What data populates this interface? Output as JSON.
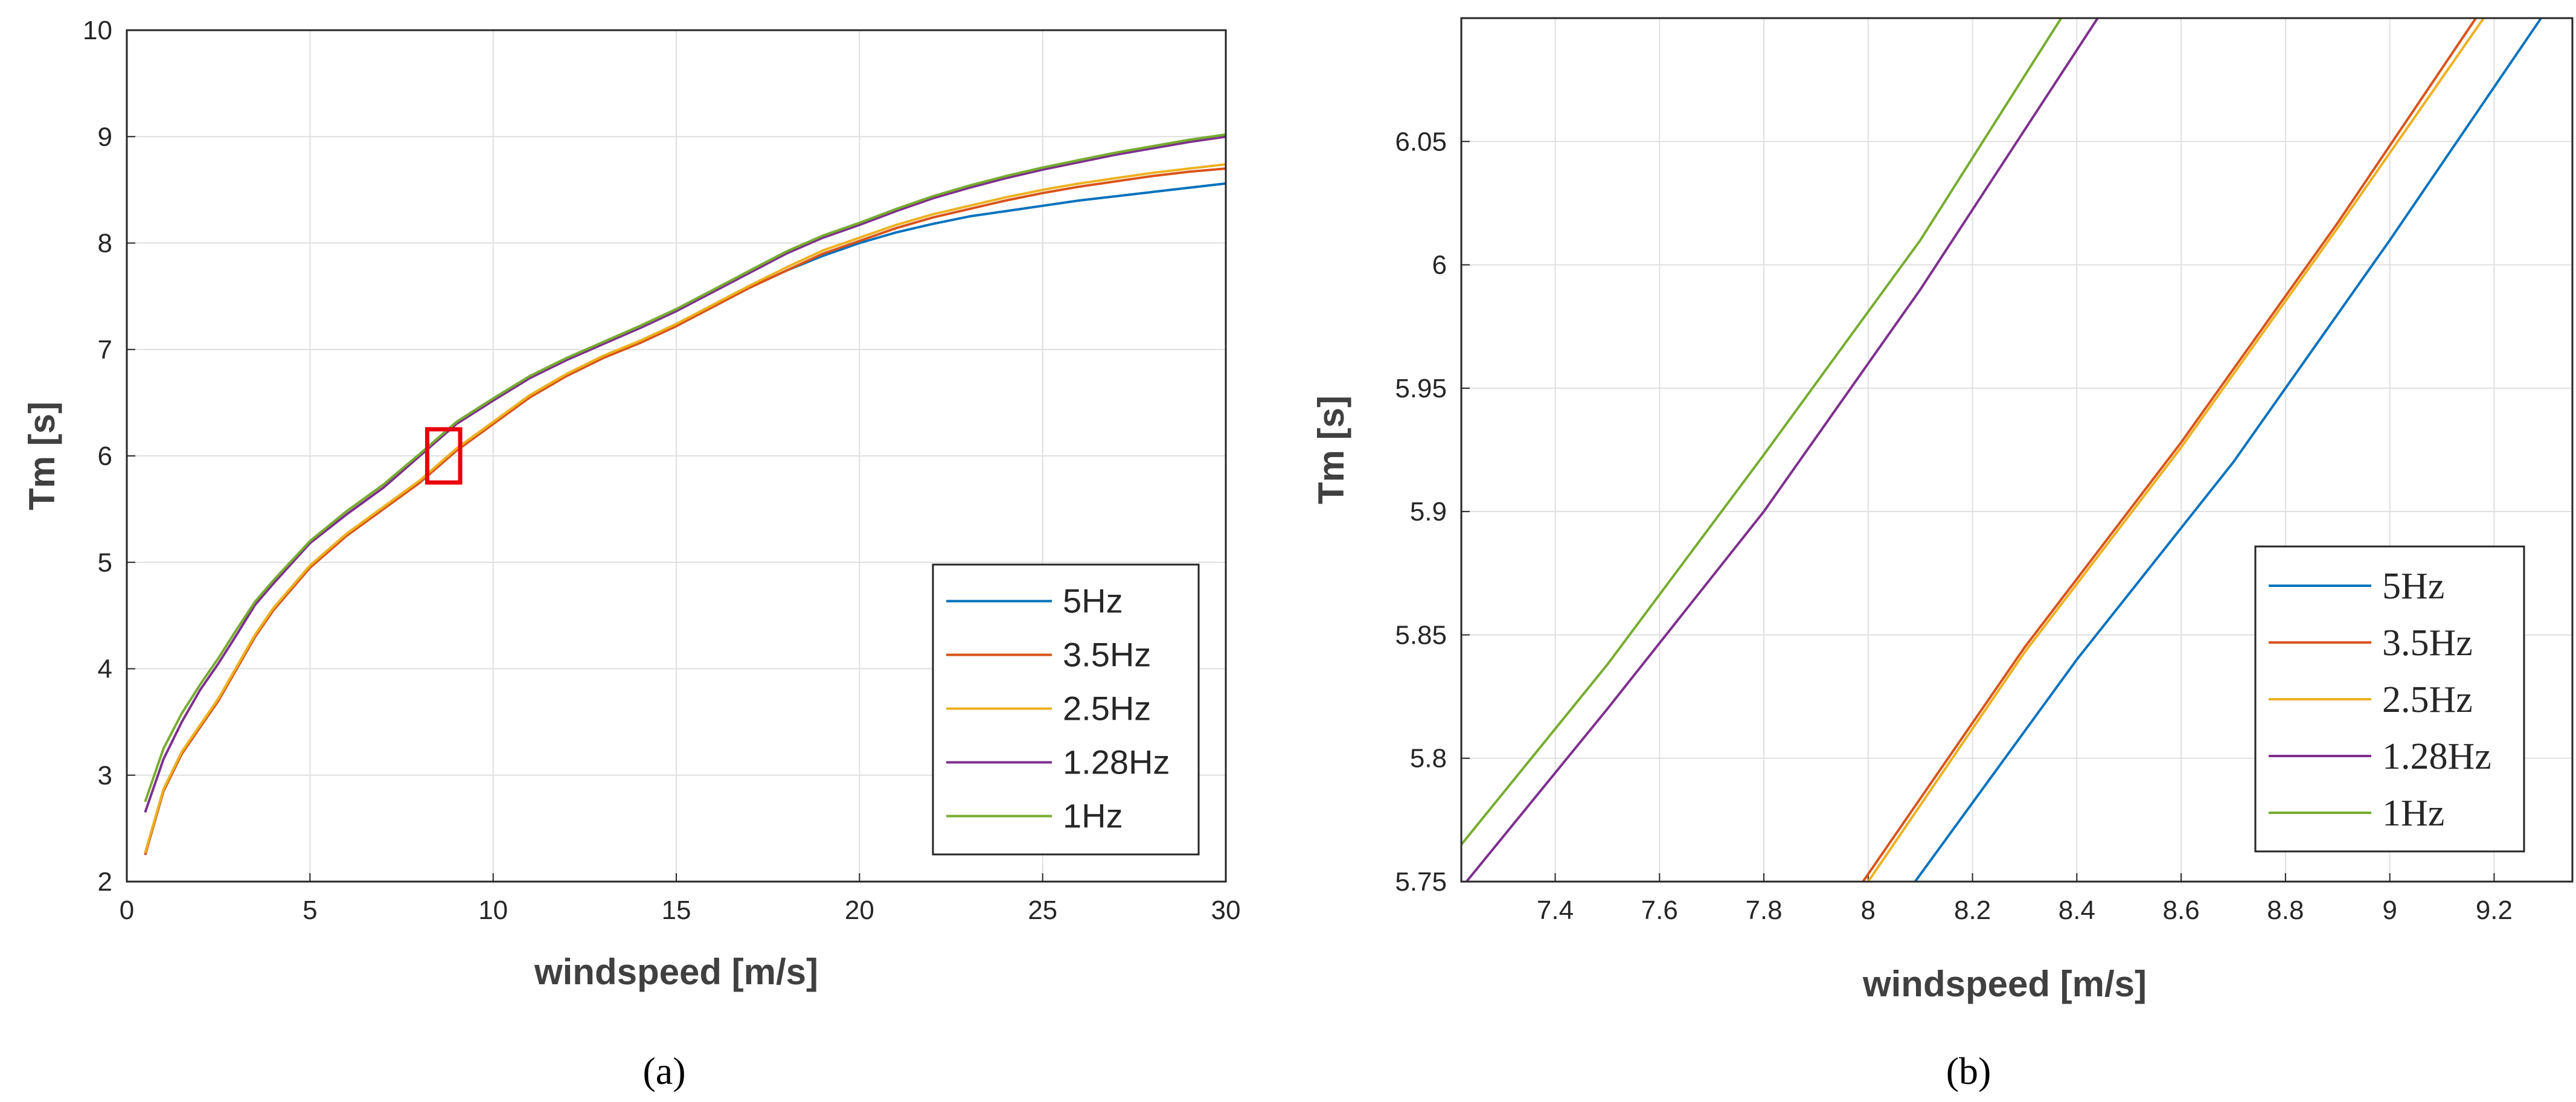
{
  "chart_data": [
    {
      "type": "line",
      "panel_label": "a",
      "xlabel": "windspeed [m/s]",
      "ylabel": "Tm [s]",
      "xlim": [
        0,
        30
      ],
      "ylim": [
        2,
        10
      ],
      "xticks": [
        0,
        5,
        10,
        15,
        20,
        25,
        30
      ],
      "yticks": [
        2,
        3,
        4,
        5,
        6,
        7,
        8,
        9,
        10
      ],
      "grid": true,
      "legend_position": "bottom-right",
      "annotation": {
        "type": "rectangle",
        "color": "#e8000b",
        "x_range": [
          8.2,
          9.1
        ],
        "y_range": [
          5.75,
          6.25
        ]
      },
      "x": [
        0.5,
        1,
        1.5,
        2,
        2.5,
        3,
        3.5,
        4,
        5,
        6,
        7,
        8,
        9,
        10,
        11,
        12,
        13,
        14,
        15,
        16,
        17,
        18,
        19,
        20,
        21,
        22,
        23,
        24,
        25,
        26,
        27,
        28,
        29,
        30
      ],
      "series": [
        {
          "name": "5Hz",
          "color": "#0072bd",
          "values": [
            2.25,
            2.85,
            3.2,
            3.45,
            3.7,
            4.0,
            4.3,
            4.55,
            4.95,
            5.25,
            5.5,
            5.75,
            6.05,
            6.3,
            6.55,
            6.75,
            6.92,
            7.06,
            7.22,
            7.4,
            7.58,
            7.74,
            7.88,
            8.0,
            8.1,
            8.18,
            8.25,
            8.3,
            8.35,
            8.4,
            8.44,
            8.48,
            8.52,
            8.56
          ]
        },
        {
          "name": "3.5Hz",
          "color": "#d95319",
          "values": [
            2.25,
            2.85,
            3.2,
            3.45,
            3.7,
            4.0,
            4.3,
            4.55,
            4.95,
            5.25,
            5.5,
            5.75,
            6.05,
            6.3,
            6.55,
            6.75,
            6.92,
            7.06,
            7.22,
            7.4,
            7.58,
            7.74,
            7.9,
            8.02,
            8.14,
            8.24,
            8.32,
            8.4,
            8.47,
            8.53,
            8.58,
            8.63,
            8.67,
            8.7
          ]
        },
        {
          "name": "2.5Hz",
          "color": "#edb120",
          "values": [
            2.27,
            2.87,
            3.22,
            3.47,
            3.72,
            4.02,
            4.32,
            4.57,
            4.97,
            5.27,
            5.52,
            5.77,
            6.07,
            6.32,
            6.57,
            6.77,
            6.94,
            7.08,
            7.24,
            7.42,
            7.6,
            7.77,
            7.93,
            8.05,
            8.17,
            8.27,
            8.35,
            8.43,
            8.5,
            8.56,
            8.61,
            8.66,
            8.7,
            8.74
          ]
        },
        {
          "name": "1.28Hz",
          "color": "#7e2f8e",
          "values": [
            2.65,
            3.15,
            3.5,
            3.8,
            4.05,
            4.32,
            4.6,
            4.8,
            5.18,
            5.45,
            5.7,
            6.0,
            6.3,
            6.52,
            6.73,
            6.9,
            7.05,
            7.2,
            7.36,
            7.54,
            7.72,
            7.9,
            8.05,
            8.17,
            8.3,
            8.42,
            8.52,
            8.61,
            8.69,
            8.76,
            8.83,
            8.89,
            8.95,
            9.0
          ]
        },
        {
          "name": "1Hz",
          "color": "#77ac30",
          "values": [
            2.75,
            3.25,
            3.58,
            3.85,
            4.1,
            4.37,
            4.63,
            4.83,
            5.2,
            5.48,
            5.73,
            6.02,
            6.32,
            6.54,
            6.75,
            6.92,
            7.07,
            7.22,
            7.38,
            7.56,
            7.74,
            7.92,
            8.07,
            8.19,
            8.32,
            8.44,
            8.54,
            8.63,
            8.71,
            8.78,
            8.85,
            8.91,
            8.97,
            9.02
          ]
        }
      ]
    },
    {
      "type": "line",
      "panel_label": "b",
      "xlabel": "windspeed [m/s]",
      "ylabel": "Tm [s]",
      "xlim": [
        7.22,
        9.35
      ],
      "ylim": [
        5.75,
        6.1
      ],
      "xticks": [
        7.4,
        7.6,
        7.8,
        8,
        8.2,
        8.4,
        8.6,
        8.8,
        9,
        9.2
      ],
      "xtick_labels": [
        "7.4",
        "7.6",
        "7.8",
        "8",
        "8.2",
        "8.4",
        "8.6",
        "8.8",
        "9",
        "9.2"
      ],
      "yticks": [
        5.75,
        5.8,
        5.85,
        5.9,
        5.95,
        6,
        6.05
      ],
      "ytick_labels": [
        "5.75",
        "5.8",
        "5.85",
        "5.9",
        "5.95",
        "6",
        "6.05"
      ],
      "grid": true,
      "legend_position": "bottom-right",
      "series": [
        {
          "name": "5Hz",
          "color": "#0072bd",
          "x": [
            8.09,
            8.4,
            8.7,
            9.0,
            9.29
          ],
          "values": [
            5.75,
            5.84,
            5.92,
            6.01,
            6.1
          ]
        },
        {
          "name": "3.5Hz",
          "color": "#d95319",
          "x": [
            7.99,
            8.3,
            8.6,
            8.9,
            9.165
          ],
          "values": [
            5.75,
            5.845,
            5.928,
            6.017,
            6.1
          ]
        },
        {
          "name": "2.5Hz",
          "color": "#edb120",
          "x": [
            8.0,
            8.3,
            8.6,
            8.9,
            9.18
          ],
          "values": [
            5.75,
            5.843,
            5.926,
            6.015,
            6.1
          ]
        },
        {
          "name": "1.28Hz",
          "color": "#7e2f8e",
          "x": [
            7.23,
            7.5,
            7.8,
            8.1,
            8.44
          ],
          "values": [
            5.75,
            5.82,
            5.9,
            5.99,
            6.1
          ]
        },
        {
          "name": "1Hz",
          "color": "#77ac30",
          "x": [
            7.22,
            7.5,
            7.8,
            8.1,
            8.37
          ],
          "values": [
            5.765,
            5.838,
            5.923,
            6.01,
            6.1
          ]
        }
      ]
    }
  ],
  "captions": [
    "(a)",
    "(b)"
  ]
}
